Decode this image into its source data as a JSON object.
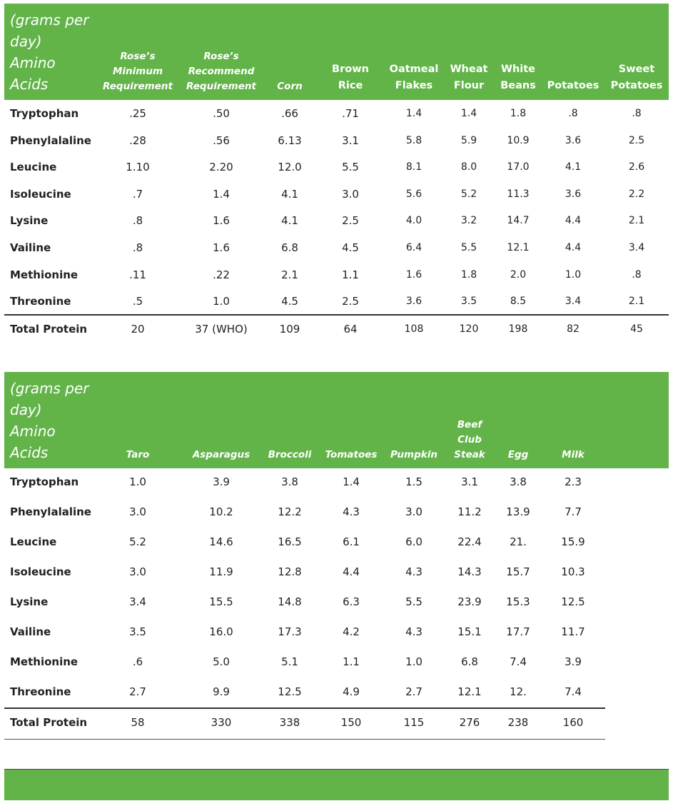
{
  "table1": {
    "caption": [
      "(grams per",
      "day)",
      "Amino",
      "Acids"
    ],
    "columns": [
      {
        "lines": [
          "Rose’s",
          "Minimum",
          "Requirement"
        ],
        "italic": true
      },
      {
        "lines": [
          "Rose’s",
          "Recommend",
          "Requirement"
        ],
        "italic": true
      },
      {
        "lines": [
          "Corn"
        ],
        "italic": true
      },
      {
        "lines": [
          "Brown",
          "Rice"
        ],
        "italic": false
      },
      {
        "lines": [
          "Oatmeal",
          "Flakes"
        ],
        "italic": false
      },
      {
        "lines": [
          "Wheat",
          "Flour"
        ],
        "italic": false
      },
      {
        "lines": [
          "White",
          "Beans"
        ],
        "italic": false
      },
      {
        "lines": [
          "Potatoes"
        ],
        "italic": false
      },
      {
        "lines": [
          "Sweet",
          "Potatoes"
        ],
        "italic": false
      }
    ],
    "rows": [
      {
        "label": "Tryptophan",
        "values": [
          ".25",
          ".50",
          ".66",
          ".71",
          "1.4",
          "1.4",
          "1.8",
          ".8",
          ".8"
        ]
      },
      {
        "label": "Phenylalaline",
        "values": [
          ".28",
          ".56",
          "6.13",
          "3.1",
          "5.8",
          "5.9",
          "10.9",
          "3.6",
          "2.5"
        ]
      },
      {
        "label": "Leucine",
        "values": [
          "1.10",
          "2.20",
          "12.0",
          "5.5",
          "8.1",
          "8.0",
          "17.0",
          "4.1",
          "2.6"
        ]
      },
      {
        "label": "Isoleucine",
        "values": [
          ".7",
          "1.4",
          "4.1",
          "3.0",
          "5.6",
          "5.2",
          "11.3",
          "3.6",
          "2.2"
        ]
      },
      {
        "label": "Lysine",
        "values": [
          ".8",
          "1.6",
          "4.1",
          "2.5",
          "4.0",
          "3.2",
          "14.7",
          "4.4",
          "2.1"
        ]
      },
      {
        "label": "Vailine",
        "values": [
          ".8",
          "1.6",
          "6.8",
          "4.5",
          "6.4",
          "5.5",
          "12.1",
          "4.4",
          "3.4"
        ]
      },
      {
        "label": "Methionine",
        "values": [
          ".11",
          ".22",
          "2.1",
          "1.1",
          "1.6",
          "1.8",
          "2.0",
          "1.0",
          ".8"
        ]
      },
      {
        "label": "Threonine",
        "values": [
          ".5",
          "1.0",
          "4.5",
          "2.5",
          "3.6",
          "3.5",
          "8.5",
          "3.4",
          "2.1"
        ]
      }
    ],
    "total": {
      "label": "Total Protein",
      "values": [
        "20",
        "37 (WHO)",
        "109",
        "64",
        "108",
        "120",
        "198",
        "82",
        "45"
      ]
    }
  },
  "table2": {
    "caption": [
      "(grams per",
      "day)",
      "Amino",
      "Acids"
    ],
    "columns": [
      {
        "lines": [
          "Taro"
        ],
        "italic": true
      },
      {
        "lines": [
          "Asparagus"
        ],
        "italic": true
      },
      {
        "lines": [
          "Broccoli"
        ],
        "italic": true
      },
      {
        "lines": [
          "Tomatoes"
        ],
        "italic": true
      },
      {
        "lines": [
          "Pumpkin"
        ],
        "italic": true
      },
      {
        "lines": [
          "Beef",
          "Club",
          "Steak"
        ],
        "italic": true
      },
      {
        "lines": [
          "Egg"
        ],
        "italic": true
      },
      {
        "lines": [
          "Milk"
        ],
        "italic": true
      }
    ],
    "rows": [
      {
        "label": "Tryptophan",
        "values": [
          "1.0",
          "3.9",
          "3.8",
          "1.4",
          "1.5",
          "3.1",
          "3.8",
          "2.3"
        ]
      },
      {
        "label": "Phenylalaline",
        "values": [
          "3.0",
          "10.2",
          "12.2",
          "4.3",
          "3.0",
          "11.2",
          "13.9",
          "7.7"
        ]
      },
      {
        "label": "Leucine",
        "values": [
          "5.2",
          "14.6",
          "16.5",
          "6.1",
          "6.0",
          "22.4",
          "21.",
          "15.9"
        ]
      },
      {
        "label": "Isoleucine",
        "values": [
          "3.0",
          "11.9",
          "12.8",
          "4.4",
          "4.3",
          "14.3",
          "15.7",
          "10.3"
        ]
      },
      {
        "label": "Lysine",
        "values": [
          "3.4",
          "15.5",
          "14.8",
          "6.3",
          "5.5",
          "23.9",
          "15.3",
          "12.5"
        ]
      },
      {
        "label": "Vailine",
        "values": [
          "3.5",
          "16.0",
          "17.3",
          "4.2",
          "4.3",
          "15.1",
          "17.7",
          "11.7"
        ]
      },
      {
        "label": "Methionine",
        "values": [
          ".6",
          "5.0",
          "5.1",
          "1.1",
          "1.0",
          "6.8",
          "7.4",
          "3.9"
        ]
      },
      {
        "label": "Threonine",
        "values": [
          "2.7",
          "9.9",
          "12.5",
          "4.9",
          "2.7",
          "12.1",
          "12.",
          "7.4"
        ]
      }
    ],
    "total": {
      "label": "Total Protein",
      "values": [
        "58",
        "330",
        "338",
        "150",
        "115",
        "276",
        "238",
        "160"
      ]
    }
  },
  "colors": {
    "header_green": "#62b449"
  }
}
